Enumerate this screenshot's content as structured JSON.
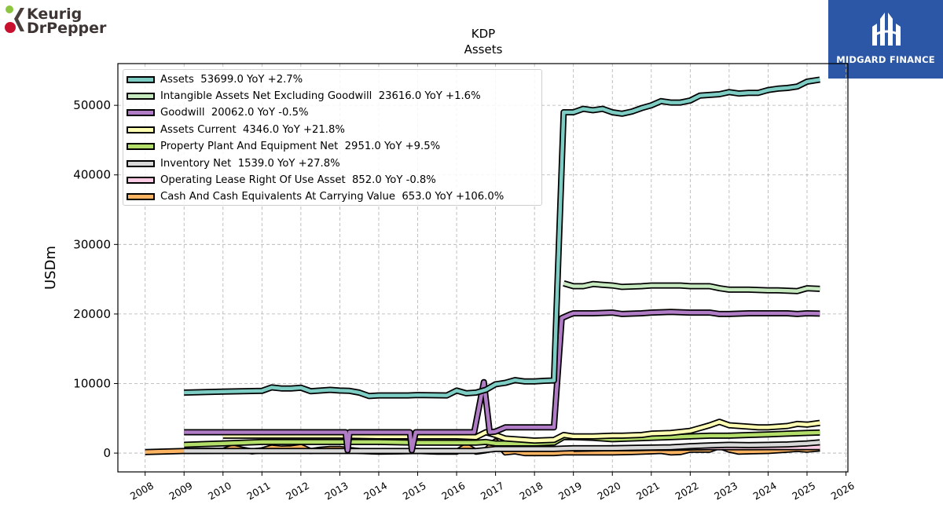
{
  "branding": {
    "left_logo": {
      "line1": "Keurig",
      "line2": "DrPepper"
    },
    "right_logo": {
      "text": "MIDGARD FINANCE",
      "bg_color": "#2b57a6"
    }
  },
  "chart_data": {
    "type": "line",
    "title": "KDP",
    "subtitle": "Assets",
    "xlabel": "",
    "ylabel": "USDm",
    "xlim": [
      2007.3,
      2026.05
    ],
    "ylim": [
      -2700,
      56000
    ],
    "x_ticks": [
      2008,
      2009,
      2010,
      2011,
      2012,
      2013,
      2014,
      2015,
      2016,
      2017,
      2018,
      2019,
      2020,
      2021,
      2022,
      2023,
      2024,
      2025,
      2026
    ],
    "y_ticks": [
      0,
      10000,
      20000,
      30000,
      40000,
      50000
    ],
    "grid": true,
    "legend_position": "upper-left",
    "series": [
      {
        "name": "Assets",
        "legend": "Assets  53699.0 YoY +2.7%",
        "color": "#7ecdc4",
        "points": [
          [
            2009.0,
            8700
          ],
          [
            2010.0,
            8850
          ],
          [
            2011.0,
            8950
          ],
          [
            2011.25,
            9450
          ],
          [
            2011.5,
            9300
          ],
          [
            2011.75,
            9300
          ],
          [
            2012.0,
            9400
          ],
          [
            2012.25,
            8900
          ],
          [
            2012.75,
            9100
          ],
          [
            2013.0,
            9000
          ],
          [
            2013.25,
            8950
          ],
          [
            2013.5,
            8700
          ],
          [
            2013.75,
            8200
          ],
          [
            2014.0,
            8300
          ],
          [
            2014.75,
            8300
          ],
          [
            2015.0,
            8350
          ],
          [
            2015.75,
            8300
          ],
          [
            2016.0,
            9000
          ],
          [
            2016.25,
            8600
          ],
          [
            2016.5,
            8700
          ],
          [
            2016.75,
            9100
          ],
          [
            2017.0,
            9900
          ],
          [
            2017.25,
            10100
          ],
          [
            2017.5,
            10500
          ],
          [
            2017.75,
            10300
          ],
          [
            2018.0,
            10300
          ],
          [
            2018.25,
            10400
          ],
          [
            2018.5,
            10450
          ],
          [
            2018.75,
            49000
          ],
          [
            2019.0,
            49000
          ],
          [
            2019.25,
            49500
          ],
          [
            2019.5,
            49300
          ],
          [
            2019.75,
            49500
          ],
          [
            2020.0,
            49000
          ],
          [
            2020.25,
            48800
          ],
          [
            2020.5,
            49100
          ],
          [
            2020.75,
            49600
          ],
          [
            2021.0,
            50000
          ],
          [
            2021.25,
            50600
          ],
          [
            2021.5,
            50400
          ],
          [
            2021.75,
            50400
          ],
          [
            2022.0,
            50700
          ],
          [
            2022.25,
            51400
          ],
          [
            2022.5,
            51500
          ],
          [
            2022.75,
            51600
          ],
          [
            2023.0,
            51900
          ],
          [
            2023.25,
            51700
          ],
          [
            2023.5,
            51800
          ],
          [
            2023.75,
            51800
          ],
          [
            2024.0,
            52200
          ],
          [
            2024.25,
            52400
          ],
          [
            2024.5,
            52500
          ],
          [
            2024.75,
            52700
          ],
          [
            2025.0,
            53400
          ],
          [
            2025.33,
            53699
          ]
        ]
      },
      {
        "name": "Intangible Assets Net Excluding Goodwill",
        "legend": "Intangible Assets Net Excluding Goodwill  23616.0 YoY +1.6%",
        "color": "#c7e9c0",
        "points": [
          [
            2018.75,
            24400
          ],
          [
            2019.0,
            24000
          ],
          [
            2019.25,
            24000
          ],
          [
            2019.5,
            24300
          ],
          [
            2019.75,
            24200
          ],
          [
            2020.0,
            24100
          ],
          [
            2020.25,
            23900
          ],
          [
            2020.75,
            24000
          ],
          [
            2021.0,
            24100
          ],
          [
            2021.75,
            24100
          ],
          [
            2022.0,
            24000
          ],
          [
            2022.5,
            24000
          ],
          [
            2022.75,
            23700
          ],
          [
            2023.0,
            23500
          ],
          [
            2023.5,
            23500
          ],
          [
            2024.0,
            23400
          ],
          [
            2024.25,
            23400
          ],
          [
            2024.75,
            23300
          ],
          [
            2025.0,
            23700
          ],
          [
            2025.33,
            23616
          ]
        ]
      },
      {
        "name": "Goodwill",
        "legend": "Goodwill  20062.0 YoY -0.5%",
        "color": "#b07cc6",
        "points": [
          [
            2009.0,
            3000
          ],
          [
            2012.75,
            3000
          ],
          [
            2013.0,
            3000
          ],
          [
            2013.15,
            3000
          ],
          [
            2013.2,
            400
          ],
          [
            2013.25,
            3000
          ],
          [
            2014.5,
            3000
          ],
          [
            2014.8,
            3000
          ],
          [
            2014.85,
            400
          ],
          [
            2014.95,
            3000
          ],
          [
            2015.75,
            3000
          ],
          [
            2016.0,
            3000
          ],
          [
            2016.25,
            3000
          ],
          [
            2016.45,
            3000
          ],
          [
            2016.7,
            10200
          ],
          [
            2016.85,
            3000
          ],
          [
            2017.0,
            3100
          ],
          [
            2017.25,
            3700
          ],
          [
            2017.5,
            3700
          ],
          [
            2018.0,
            3700
          ],
          [
            2018.5,
            3700
          ],
          [
            2018.7,
            19400
          ],
          [
            2018.9,
            19900
          ],
          [
            2019.0,
            20100
          ],
          [
            2019.5,
            20100
          ],
          [
            2020.0,
            20200
          ],
          [
            2020.25,
            20000
          ],
          [
            2020.75,
            20100
          ],
          [
            2021.0,
            20200
          ],
          [
            2021.5,
            20300
          ],
          [
            2022.0,
            20200
          ],
          [
            2022.5,
            20200
          ],
          [
            2022.75,
            20000
          ],
          [
            2023.0,
            20000
          ],
          [
            2023.5,
            20100
          ],
          [
            2024.0,
            20100
          ],
          [
            2024.5,
            20100
          ],
          [
            2024.75,
            20000
          ],
          [
            2025.0,
            20100
          ],
          [
            2025.33,
            20062
          ]
        ]
      },
      {
        "name": "Assets Current",
        "legend": "Assets Current  4346.0 YoY +21.8%",
        "color": "#ffffb3",
        "points": [
          [
            2010.0,
            2500
          ],
          [
            2011.0,
            2500
          ],
          [
            2012.0,
            2500
          ],
          [
            2013.0,
            2500
          ],
          [
            2014.0,
            2400
          ],
          [
            2015.0,
            2400
          ],
          [
            2016.0,
            2400
          ],
          [
            2016.5,
            2300
          ],
          [
            2016.75,
            3000
          ],
          [
            2017.0,
            2600
          ],
          [
            2017.25,
            2100
          ],
          [
            2017.75,
            1900
          ],
          [
            2018.0,
            1800
          ],
          [
            2018.5,
            1900
          ],
          [
            2018.75,
            2600
          ],
          [
            2019.0,
            2400
          ],
          [
            2019.5,
            2400
          ],
          [
            2020.0,
            2500
          ],
          [
            2020.25,
            2500
          ],
          [
            2020.75,
            2600
          ],
          [
            2021.0,
            2800
          ],
          [
            2021.5,
            2900
          ],
          [
            2022.0,
            3200
          ],
          [
            2022.25,
            3600
          ],
          [
            2022.5,
            4000
          ],
          [
            2022.75,
            4500
          ],
          [
            2023.0,
            4000
          ],
          [
            2023.25,
            3900
          ],
          [
            2023.5,
            3800
          ],
          [
            2023.75,
            3700
          ],
          [
            2024.0,
            3700
          ],
          [
            2024.5,
            3900
          ],
          [
            2024.75,
            4200
          ],
          [
            2025.0,
            4100
          ],
          [
            2025.33,
            4346
          ]
        ]
      },
      {
        "name": "Property Plant And Equipment Net",
        "legend": "Property Plant And Equipment Net  2951.0 YoY +9.5%",
        "color": "#b3de69",
        "points": [
          [
            2009.0,
            1200
          ],
          [
            2010.0,
            1400
          ],
          [
            2011.0,
            1600
          ],
          [
            2012.0,
            1600
          ],
          [
            2013.0,
            1600
          ],
          [
            2014.0,
            1600
          ],
          [
            2015.0,
            1500
          ],
          [
            2016.0,
            1500
          ],
          [
            2016.5,
            1500
          ],
          [
            2016.75,
            1600
          ],
          [
            2017.0,
            1400
          ],
          [
            2017.5,
            1400
          ],
          [
            2018.0,
            1400
          ],
          [
            2018.5,
            1500
          ],
          [
            2018.75,
            2300
          ],
          [
            2019.0,
            2300
          ],
          [
            2019.5,
            2200
          ],
          [
            2020.0,
            2000
          ],
          [
            2020.5,
            2100
          ],
          [
            2021.0,
            2200
          ],
          [
            2021.5,
            2300
          ],
          [
            2022.0,
            2400
          ],
          [
            2022.5,
            2500
          ],
          [
            2023.0,
            2500
          ],
          [
            2023.5,
            2600
          ],
          [
            2024.0,
            2700
          ],
          [
            2024.5,
            2800
          ],
          [
            2025.0,
            2900
          ],
          [
            2025.33,
            2951
          ]
        ]
      },
      {
        "name": "Inventory Net",
        "legend": "Inventory Net  1539.0 YoY +27.8%",
        "color": "#d9d9d9",
        "points": [
          [
            2009.0,
            300
          ],
          [
            2010.0,
            300
          ],
          [
            2011.0,
            300
          ],
          [
            2012.0,
            300
          ],
          [
            2013.0,
            300
          ],
          [
            2014.0,
            300
          ],
          [
            2015.0,
            300
          ],
          [
            2016.0,
            300
          ],
          [
            2016.5,
            300
          ],
          [
            2016.75,
            450
          ],
          [
            2017.0,
            600
          ],
          [
            2017.5,
            600
          ],
          [
            2018.0,
            600
          ],
          [
            2018.5,
            600
          ],
          [
            2018.75,
            650
          ],
          [
            2019.0,
            700
          ],
          [
            2019.5,
            700
          ],
          [
            2020.0,
            700
          ],
          [
            2020.5,
            750
          ],
          [
            2021.0,
            800
          ],
          [
            2021.5,
            850
          ],
          [
            2022.0,
            1000
          ],
          [
            2022.5,
            1100
          ],
          [
            2023.0,
            1200
          ],
          [
            2023.5,
            1150
          ],
          [
            2024.0,
            1200
          ],
          [
            2024.5,
            1250
          ],
          [
            2025.0,
            1400
          ],
          [
            2025.33,
            1539
          ]
        ]
      },
      {
        "name": "Operating Lease Right Of Use Asset",
        "legend": "Operating Lease Right Of Use Asset  852.0 YoY -0.8%",
        "color": "#fccde5",
        "points": [
          [
            2019.0,
            600
          ],
          [
            2019.5,
            650
          ],
          [
            2020.0,
            700
          ],
          [
            2020.5,
            700
          ],
          [
            2021.0,
            750
          ],
          [
            2021.5,
            750
          ],
          [
            2022.0,
            800
          ],
          [
            2022.5,
            850
          ],
          [
            2023.0,
            850
          ],
          [
            2023.5,
            850
          ],
          [
            2024.0,
            860
          ],
          [
            2024.5,
            860
          ],
          [
            2025.0,
            855
          ],
          [
            2025.33,
            852
          ]
        ]
      },
      {
        "name": "Cash And Cash Equivalents At Carrying Value",
        "legend": "Cash And Cash Equivalents At Carrying Value  653.0 YoY +106.0%",
        "color": "#fdb462",
        "points": [
          [
            2008.0,
            150
          ],
          [
            2009.0,
            300
          ],
          [
            2010.0,
            350
          ],
          [
            2010.25,
            800
          ],
          [
            2010.5,
            500
          ],
          [
            2010.75,
            250
          ],
          [
            2011.0,
            400
          ],
          [
            2011.25,
            800
          ],
          [
            2011.5,
            650
          ],
          [
            2011.75,
            700
          ],
          [
            2012.0,
            900
          ],
          [
            2012.25,
            300
          ],
          [
            2012.5,
            500
          ],
          [
            2012.75,
            600
          ],
          [
            2013.0,
            600
          ],
          [
            2013.5,
            300
          ],
          [
            2014.0,
            200
          ],
          [
            2014.5,
            250
          ],
          [
            2015.0,
            300
          ],
          [
            2015.5,
            200
          ],
          [
            2016.0,
            200
          ],
          [
            2016.25,
            1000
          ],
          [
            2016.5,
            200
          ],
          [
            2016.75,
            400
          ],
          [
            2017.0,
            1700
          ],
          [
            2017.25,
            100
          ],
          [
            2017.5,
            250
          ],
          [
            2017.75,
            0
          ],
          [
            2018.0,
            0
          ],
          [
            2018.5,
            0
          ],
          [
            2018.75,
            100
          ],
          [
            2019.0,
            100
          ],
          [
            2019.5,
            100
          ],
          [
            2020.0,
            100
          ],
          [
            2020.5,
            150
          ],
          [
            2021.0,
            250
          ],
          [
            2021.25,
            300
          ],
          [
            2021.5,
            100
          ],
          [
            2021.75,
            150
          ],
          [
            2022.0,
            500
          ],
          [
            2022.5,
            500
          ],
          [
            2022.75,
            1000
          ],
          [
            2023.0,
            500
          ],
          [
            2023.25,
            200
          ],
          [
            2023.5,
            250
          ],
          [
            2024.0,
            300
          ],
          [
            2024.5,
            500
          ],
          [
            2024.75,
            600
          ],
          [
            2025.0,
            500
          ],
          [
            2025.33,
            653
          ]
        ]
      }
    ]
  }
}
